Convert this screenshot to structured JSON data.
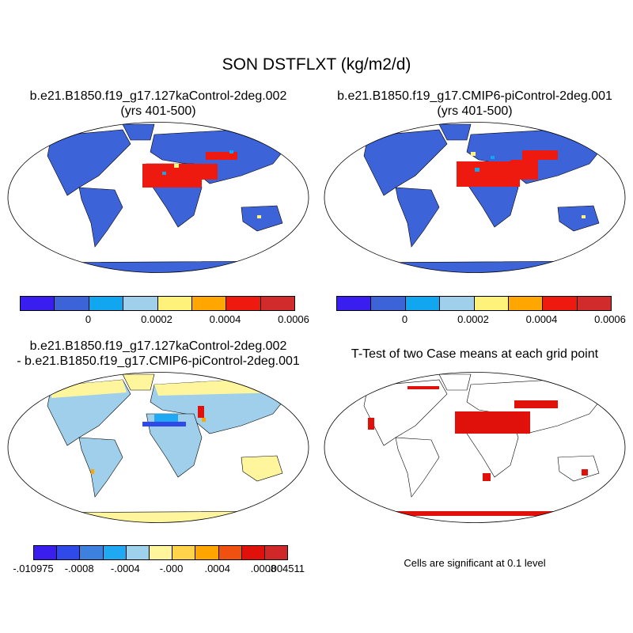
{
  "title": "SON DSTFLXT (kg/m2/d)",
  "panels": [
    {
      "title_line1": "b.e21.B1850.f19_g17.127kaControl-2deg.002",
      "title_line2": "(yrs 401-500)"
    },
    {
      "title_line1": "b.e21.B1850.f19_g17.CMIP6-piControl-2deg.001",
      "title_line2": "(yrs 401-500)"
    },
    {
      "title_line1": "b.e21.B1850.f19_g17.127kaControl-2deg.002",
      "title_line2": "- b.e21.B1850.f19_g17.CMIP6-piControl-2deg.001"
    },
    {
      "title_line1": "T-Test of two Case means at each grid point",
      "title_line2": ""
    }
  ],
  "colorbar_top": {
    "colors": [
      "#3a1ef0",
      "#3d63d9",
      "#10a6f0",
      "#9fcfeb",
      "#fff27a",
      "#ffa600",
      "#ee1a10",
      "#d12b2b"
    ],
    "labels": [
      "0",
      "0.0002",
      "0.0004",
      "0.0006"
    ]
  },
  "colorbar_diff": {
    "colors": [
      "#3a1ef0",
      "#2f4ae8",
      "#3d80dd",
      "#1fa9f2",
      "#9ed2ec",
      "#fff59d",
      "#ffd44a",
      "#ffa500",
      "#f05010",
      "#e0100a",
      "#d02828"
    ],
    "labels": [
      "-.010975",
      "-.0008",
      "-.0004",
      "-.000",
      ".0004",
      ".0008",
      ".004511"
    ]
  },
  "ttest_note": "Cells are significant at 0.1 level",
  "map_colors": {
    "ocean": "#ffffff",
    "land_low": "#3d63d9",
    "dust_high": "#ee1a10",
    "diff_neutral": "#9fcfeb",
    "diff_pos": "#fff59d",
    "signif": "#e0100a"
  }
}
